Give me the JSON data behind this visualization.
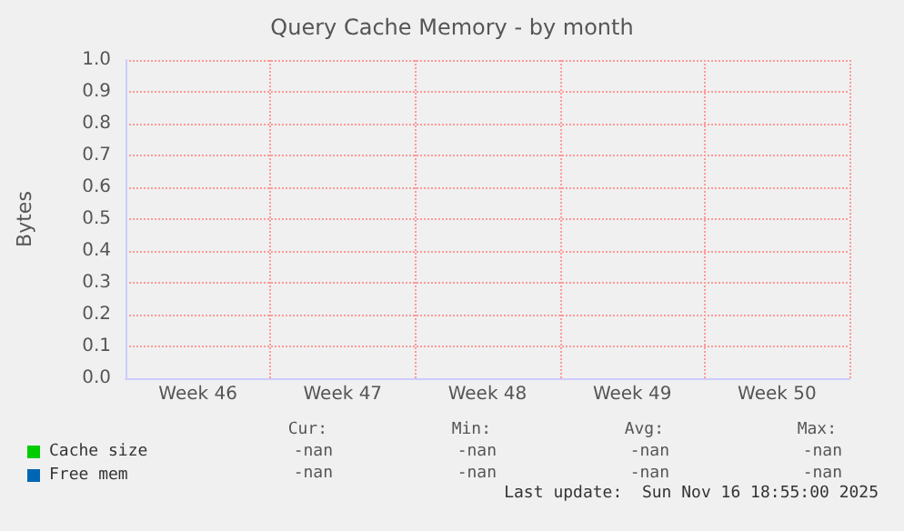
{
  "chart_data": {
    "type": "line",
    "title": "Query Cache Memory - by month",
    "ylabel": "Bytes",
    "categories": [
      "Week 46",
      "Week 47",
      "Week 48",
      "Week 49",
      "Week 50"
    ],
    "series": [
      {
        "name": "Cache size",
        "color": "#00cc00",
        "values": [
          null,
          null,
          null,
          null,
          null
        ]
      },
      {
        "name": "Free mem",
        "color": "#0066b3",
        "values": [
          null,
          null,
          null,
          null,
          null
        ]
      }
    ],
    "ylim": [
      0,
      1
    ],
    "yticks": [
      {
        "value": 0,
        "label": "0.0"
      },
      {
        "value": 0.1,
        "label": "0.1"
      },
      {
        "value": 0.2,
        "label": "0.2"
      },
      {
        "value": 0.3,
        "label": "0.3"
      },
      {
        "value": 0.4,
        "label": "0.4"
      },
      {
        "value": 0.5,
        "label": "0.5"
      },
      {
        "value": 0.6,
        "label": "0.6"
      },
      {
        "value": 0.7,
        "label": "0.7"
      },
      {
        "value": 0.8,
        "label": "0.8"
      },
      {
        "value": 0.9,
        "label": "0.9"
      },
      {
        "value": 1,
        "label": "1.0"
      }
    ],
    "grid": true,
    "legend": "bottom left",
    "annotations": [
      "Cur:",
      "Min:",
      "Avg:",
      "Max:",
      "-nan",
      "-nan",
      "-nan",
      "-nan",
      "-nan",
      "-nan",
      "-nan",
      "-nan",
      "Last update:  Sun Nov 16 18:55:00 2025"
    ]
  }
}
